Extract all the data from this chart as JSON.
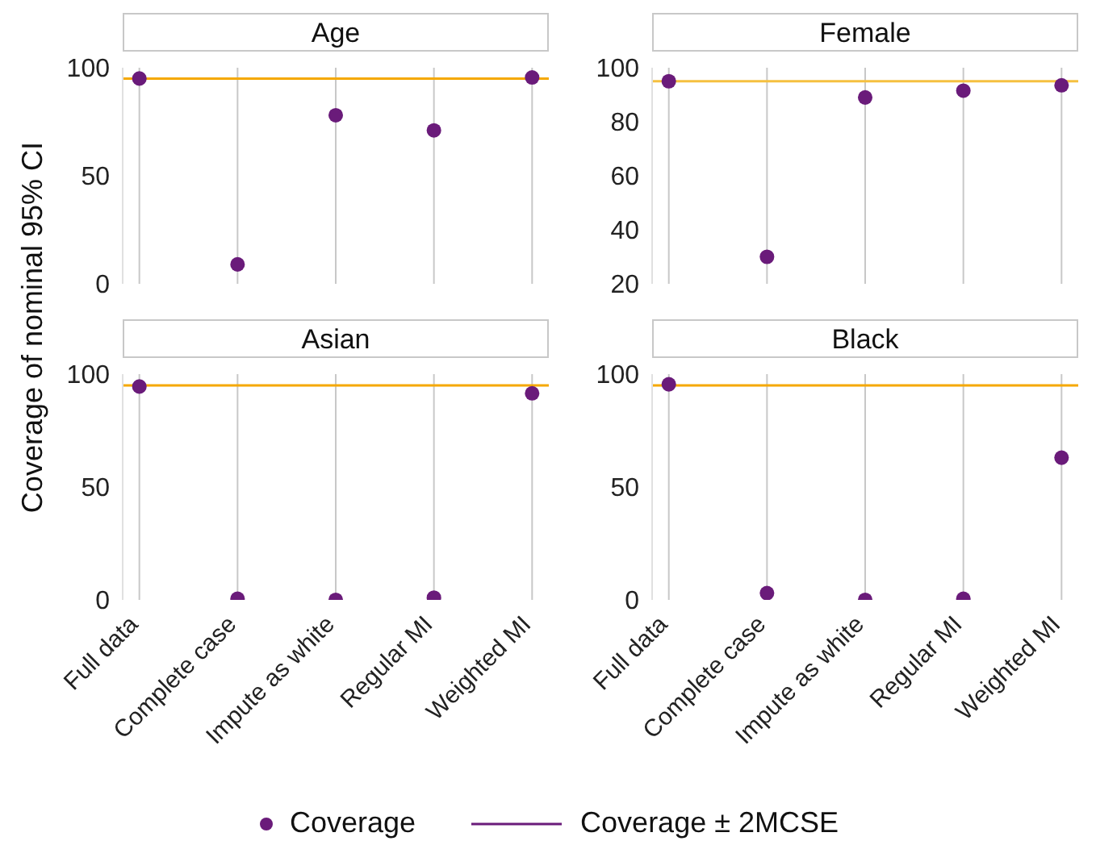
{
  "chart_data": [
    {
      "type": "scatter",
      "title": "Age",
      "ylabel": "Coverage of nominal 95% CI",
      "categories": [
        null,
        null,
        null,
        null,
        null
      ],
      "series": [
        {
          "name": "Coverage",
          "color": "#6a1b7a",
          "values": [
            95,
            9,
            78,
            71,
            95.5
          ]
        }
      ],
      "ylim": [
        0,
        100
      ],
      "yticks": [
        0,
        50,
        100
      ],
      "ref_lines": [
        {
          "axis": "y",
          "value": 95,
          "color": "#f5a800"
        }
      ],
      "grid": "x",
      "tick_labels": "y",
      "marker": "circle",
      "legend": "bottom",
      "annotations": [
        "Coverage ± 2MCSE"
      ]
    },
    {
      "type": "scatter",
      "title": "Female",
      "categories": [
        null,
        null,
        null,
        null,
        null
      ],
      "series": [
        {
          "color": "#6a1b7a",
          "values": [
            95,
            30,
            89,
            91.5,
            93.5
          ]
        }
      ],
      "ylim": [
        20,
        100
      ],
      "yticks": [
        20,
        40,
        60,
        80,
        100
      ],
      "ref_lines": [
        {
          "axis": "y",
          "value": 95,
          "color": "#f5c040"
        }
      ],
      "grid": "x",
      "tick_labels": "y",
      "marker": "circle"
    },
    {
      "type": "scatter",
      "title": "Asian",
      "categories": [
        "Full data",
        "Complete case",
        "Impute as white",
        "Regular MI",
        "Weighted MI"
      ],
      "series": [
        {
          "color": "#6a1b7a",
          "values": [
            94.5,
            0.5,
            0,
            1,
            91.5
          ]
        }
      ],
      "ylim": [
        0,
        100
      ],
      "yticks": [
        0,
        50,
        100
      ],
      "ref_lines": [
        {
          "axis": "y",
          "value": 95,
          "color": "#f5a800"
        }
      ],
      "grid": "x",
      "marker": "circle"
    },
    {
      "type": "scatter",
      "title": "Black",
      "categories": [
        "Full data",
        "Complete case",
        "Impute as white",
        "Regular MI",
        "Weighted MI"
      ],
      "series": [
        {
          "color": "#6a1b7a",
          "values": [
            95.5,
            3,
            0,
            0.5,
            63
          ]
        }
      ],
      "ylim": [
        0,
        100
      ],
      "yticks": [
        0,
        50,
        100
      ],
      "ref_lines": [
        {
          "axis": "y",
          "value": 95,
          "color": "#f5a800"
        }
      ],
      "grid": "x",
      "marker": "circle"
    }
  ]
}
